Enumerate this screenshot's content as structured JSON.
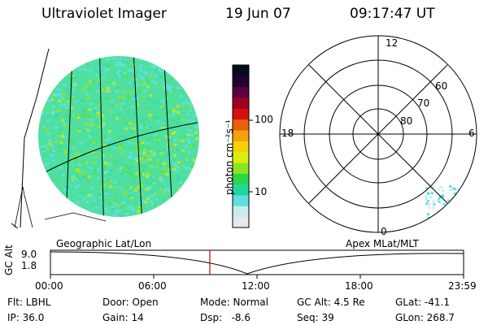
{
  "header": {
    "instrument": "Ultraviolet Imager",
    "date": "19 Jun 07",
    "time": "09:17:47 UT"
  },
  "colorbar": {
    "unit_label": "photon cm⁻²s⁻¹",
    "tick_high": "100",
    "tick_low": "10",
    "colors": [
      "#e8e8e8",
      "#c8ecec",
      "#5fe0e0",
      "#22d6a0",
      "#2bd84a",
      "#8ce41e",
      "#d9ee10",
      "#f4d20a",
      "#f5a10a",
      "#e8600c",
      "#d41010",
      "#a00020",
      "#5a0040",
      "#240034",
      "#0a0a1e"
    ]
  },
  "geo_map": {
    "label": "Geographic Lat/Lon",
    "fill_colors": [
      "#5fe0e0",
      "#3bdba6",
      "#4fe060",
      "#8fe23a",
      "#b4e836"
    ]
  },
  "polar_plot": {
    "label": "Apex MLat/MLT",
    "mlt_top": "12",
    "mlt_left": "18",
    "mlt_right": "6",
    "mlt_bottom": "0",
    "lat_60": "60",
    "lat_70": "70",
    "lat_80": "80"
  },
  "timeline": {
    "y_axis_label": "GC Alt",
    "y_high": "9.0",
    "y_low": "1.8",
    "x_ticks": [
      "00:00",
      "06:00",
      "12:00",
      "18:00",
      "23:59"
    ],
    "current_time_color": "#c00000"
  },
  "status": {
    "flt": "Flt: LBHL",
    "ip": "IP: 36.0",
    "door": "Door: Open",
    "gain": "Gain: 14",
    "mode": "Mode: Normal",
    "dsp": "Dsp:   -8.6",
    "gc_alt": "GC Alt: 4.5 Re",
    "seq": "Seq: 39",
    "glat": "GLat: -41.1",
    "glon": "GLon: 268.7"
  }
}
